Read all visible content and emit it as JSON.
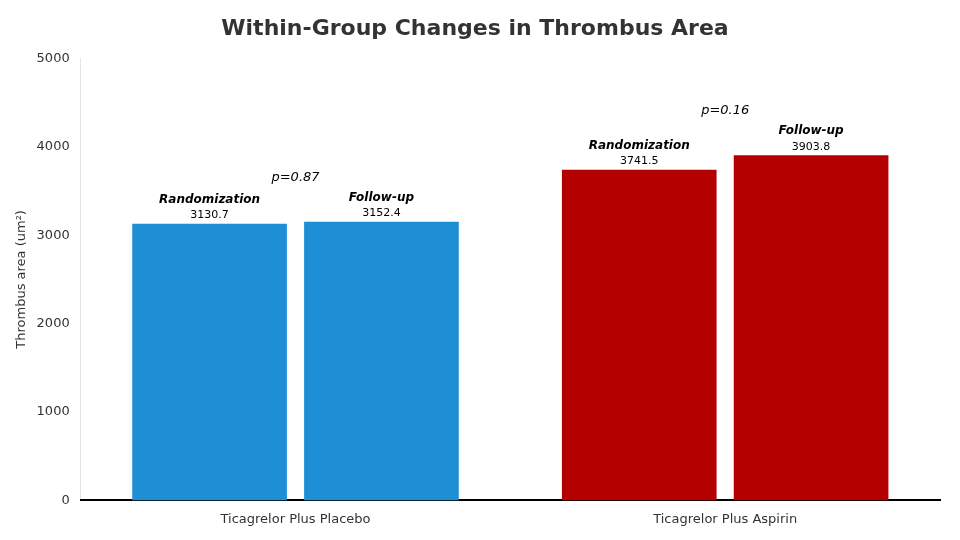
{
  "chart_data": {
    "type": "bar",
    "title": "Within-Group Changes in Thrombus Area",
    "ylabel": "Thrombus area (um²)",
    "categories": [
      "Ticagrelor Plus Placebo",
      "Ticagrelor Plus Aspirin"
    ],
    "series": [
      {
        "name": "Randomization",
        "values": [
          3130.7,
          3741.5
        ],
        "colors": [
          "#1E8FD5",
          "#B50000"
        ]
      },
      {
        "name": "Follow-up",
        "values": [
          3152.4,
          3903.8
        ],
        "colors": [
          "#1E8FD5",
          "#B50000"
        ]
      }
    ],
    "annotations": [
      "p=0.87",
      "p=0.16"
    ],
    "ylim": [
      0,
      5000
    ],
    "yticks": [
      0,
      1000,
      2000,
      3000,
      4000,
      5000
    ],
    "grid": false,
    "data_labels": true
  }
}
